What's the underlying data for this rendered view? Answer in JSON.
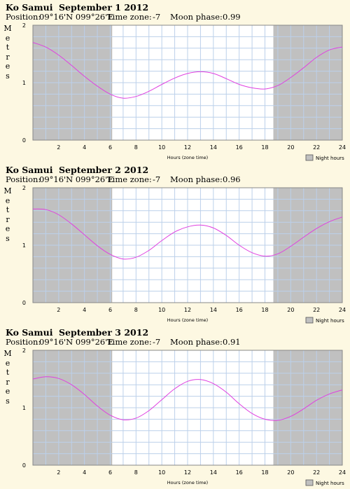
{
  "colors": {
    "background": "#fdf8e2",
    "night": "#c0c0c0",
    "grid": "#bcd0ea",
    "curve": "#e040e0"
  },
  "panels": [
    {
      "location": "Ko Samui",
      "date": "September 1 2012",
      "position_label": "Position:",
      "position": "09°16'N 099°26'E",
      "timezone_label": "Time zone:",
      "timezone": "-7",
      "moon_label": "Moon phase:",
      "moon_phase": "0.99"
    },
    {
      "location": "Ko Samui",
      "date": "September 2 2012",
      "position_label": "Position:",
      "position": "09°16'N 099°26'E",
      "timezone_label": "Time zone:",
      "timezone": "-7",
      "moon_label": "Moon phase:",
      "moon_phase": "0.96"
    },
    {
      "location": "Ko Samui",
      "date": "September 3 2012",
      "position_label": "Position:",
      "position": "09°16'N 099°26'E",
      "timezone_label": "Time zone:",
      "timezone": "-7",
      "moon_label": "Moon phase:",
      "moon_phase": "0.91"
    }
  ],
  "chart_data": [
    {
      "type": "line",
      "title": "",
      "xlabel": "Hours (zone time)",
      "ylabel": "Metres",
      "xlim": [
        0,
        24
      ],
      "ylim": [
        0,
        2
      ],
      "x_ticks": [
        "2",
        "4",
        "6",
        "8",
        "10",
        "12",
        "14",
        "16",
        "18",
        "20",
        "22",
        "24"
      ],
      "y_ticks": [
        "0",
        "1",
        "2"
      ],
      "legend": "Night hours",
      "grid": true,
      "night_hours": [
        [
          0,
          6.15
        ],
        [
          18.65,
          24
        ]
      ],
      "series": [
        {
          "x": [
            0,
            1,
            2,
            3,
            4,
            5,
            6,
            7,
            8,
            9,
            10,
            11,
            12,
            13,
            14,
            15,
            16,
            17,
            18,
            19,
            20,
            21,
            22,
            23,
            24
          ],
          "y": [
            1.7,
            1.62,
            1.48,
            1.3,
            1.11,
            0.94,
            0.8,
            0.73,
            0.76,
            0.85,
            0.97,
            1.08,
            1.16,
            1.19,
            1.16,
            1.07,
            0.97,
            0.91,
            0.89,
            0.95,
            1.09,
            1.26,
            1.44,
            1.57,
            1.62
          ]
        }
      ]
    },
    {
      "type": "line",
      "title": "",
      "xlabel": "Hours (zone time)",
      "ylabel": "Metres",
      "xlim": [
        0,
        24
      ],
      "ylim": [
        0,
        2
      ],
      "x_ticks": [
        "2",
        "4",
        "6",
        "8",
        "10",
        "12",
        "14",
        "16",
        "18",
        "20",
        "22",
        "24"
      ],
      "y_ticks": [
        "0",
        "1",
        "2"
      ],
      "legend": "Night hours",
      "grid": true,
      "night_hours": [
        [
          0,
          6.15
        ],
        [
          18.65,
          24
        ]
      ],
      "series": [
        {
          "x": [
            0,
            1,
            2,
            3,
            4,
            5,
            6,
            7,
            8,
            9,
            10,
            11,
            12,
            13,
            14,
            15,
            16,
            17,
            18,
            19,
            20,
            21,
            22,
            23,
            24
          ],
          "y": [
            1.63,
            1.62,
            1.53,
            1.37,
            1.18,
            0.99,
            0.84,
            0.76,
            0.79,
            0.91,
            1.08,
            1.23,
            1.32,
            1.35,
            1.3,
            1.17,
            1.0,
            0.87,
            0.81,
            0.85,
            0.98,
            1.14,
            1.29,
            1.41,
            1.49
          ]
        }
      ]
    },
    {
      "type": "line",
      "title": "",
      "xlabel": "Hours (zone time)",
      "ylabel": "Metres",
      "xlim": [
        0,
        24
      ],
      "ylim": [
        0,
        2
      ],
      "x_ticks": [
        "2",
        "4",
        "6",
        "8",
        "10",
        "12",
        "14",
        "16",
        "18",
        "20",
        "22",
        "24"
      ],
      "y_ticks": [
        "0",
        "1",
        "2"
      ],
      "legend": "Night hours",
      "grid": true,
      "night_hours": [
        [
          0,
          6.15
        ],
        [
          18.65,
          24
        ]
      ],
      "series": [
        {
          "x": [
            0,
            1,
            2,
            3,
            4,
            5,
            6,
            7,
            8,
            9,
            10,
            11,
            12,
            13,
            14,
            15,
            16,
            17,
            18,
            19,
            20,
            21,
            22,
            23,
            24
          ],
          "y": [
            1.5,
            1.54,
            1.51,
            1.4,
            1.23,
            1.03,
            0.87,
            0.79,
            0.82,
            0.95,
            1.14,
            1.33,
            1.46,
            1.49,
            1.42,
            1.27,
            1.07,
            0.9,
            0.8,
            0.78,
            0.85,
            0.98,
            1.13,
            1.24,
            1.31
          ]
        }
      ]
    }
  ]
}
